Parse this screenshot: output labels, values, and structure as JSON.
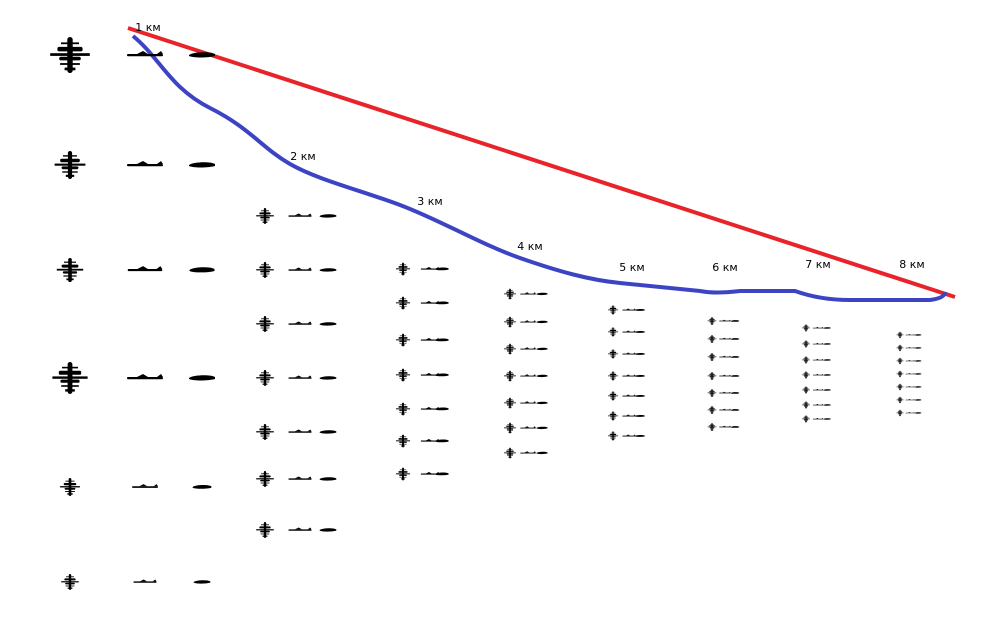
{
  "distance_labels": [
    "1 км",
    "2 км",
    "3 км",
    "4 км",
    "5 км",
    "6 км",
    "7 км",
    "8 км"
  ]
}
